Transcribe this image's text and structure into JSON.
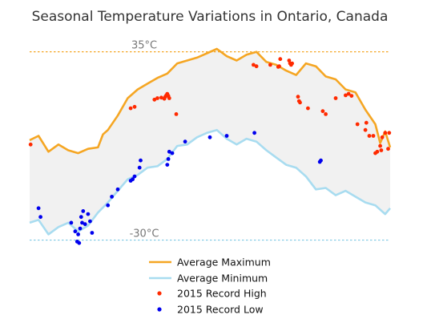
{
  "chart_data": {
    "type": "line",
    "title": "Seasonal Temperature Variations in Ontario, Canada",
    "xlabel": "",
    "ylabel": "",
    "x_unit": "day of year",
    "xlim": [
      1,
      365
    ],
    "ylim": [
      -31.5,
      38.5
    ],
    "grid": false,
    "legend_position": "bottom-center",
    "reference_lines": [
      {
        "value": 35,
        "label": "35°C",
        "color": "#f5a623"
      },
      {
        "value": -30,
        "label": "-30°C",
        "color": "#7ec8e3"
      }
    ],
    "band_color": "#f1f1f1",
    "series": [
      {
        "name": "Average Maximum",
        "kind": "line",
        "color": "#f5a623",
        "x": [
          1,
          10,
          20,
          30,
          40,
          50,
          60,
          70,
          75,
          80,
          90,
          100,
          110,
          120,
          130,
          140,
          150,
          160,
          170,
          180,
          190,
          200,
          210,
          220,
          230,
          240,
          250,
          260,
          270,
          280,
          290,
          300,
          310,
          320,
          330,
          340,
          350,
          355,
          360,
          365
        ],
        "values": [
          4.5,
          6,
          0.5,
          3,
          1,
          0,
          1.5,
          2,
          6.5,
          8,
          13,
          19,
          22,
          24,
          26,
          27.5,
          31,
          32,
          33,
          34.5,
          36,
          33.5,
          32,
          34,
          35,
          31.5,
          30.5,
          28.5,
          27,
          31,
          30,
          26.5,
          25.5,
          22,
          21,
          15,
          10,
          3.5,
          7.5,
          2
        ]
      },
      {
        "name": "Average Minimum",
        "kind": "line",
        "color": "#a8dcf0",
        "x": [
          1,
          10,
          20,
          30,
          40,
          50,
          60,
          70,
          80,
          90,
          100,
          110,
          120,
          130,
          140,
          150,
          160,
          170,
          180,
          190,
          200,
          210,
          220,
          230,
          240,
          250,
          260,
          270,
          280,
          290,
          300,
          310,
          320,
          330,
          340,
          350,
          360,
          365
        ],
        "values": [
          -24,
          -23,
          -28,
          -25.5,
          -24,
          -27,
          -25,
          -20.5,
          -17,
          -13,
          -9,
          -7.5,
          -5,
          -4.5,
          -2,
          2.5,
          3,
          5.5,
          7,
          8,
          5,
          3,
          5,
          4,
          1,
          -1.5,
          -4,
          -5,
          -8,
          -12.5,
          -12,
          -14.5,
          -13,
          -15,
          -17,
          -18,
          -21,
          -19
        ]
      },
      {
        "name": "2015 Record High",
        "kind": "scatter",
        "color": "#ff2a00",
        "x": [
          2,
          103,
          107,
          127,
          130,
          134,
          137,
          138,
          139,
          140,
          141,
          142,
          149,
          227,
          230,
          244,
          252,
          253,
          254,
          263,
          264,
          265,
          266,
          272,
          273,
          274,
          282,
          297,
          300,
          310,
          320,
          323,
          326,
          332,
          340,
          341,
          344,
          348,
          350,
          352,
          355,
          356,
          357,
          360,
          363,
          364
        ],
        "values": [
          3,
          15.5,
          16,
          18.5,
          19,
          19.2,
          18.8,
          19.5,
          20,
          20.5,
          19.8,
          19,
          13.5,
          30.5,
          30,
          30.5,
          29.8,
          30,
          32.5,
          32,
          31,
          30.5,
          31,
          19.5,
          18,
          17.5,
          15.5,
          14.5,
          13.5,
          19,
          20,
          20.5,
          19.8,
          10,
          8,
          10.5,
          6,
          6,
          0,
          0.5,
          2.5,
          1,
          5.5,
          7,
          1.5,
          7
        ]
      },
      {
        "name": "2015 Record Low",
        "kind": "scatter",
        "color": "#0000ee",
        "x": [
          10,
          12,
          43,
          47,
          49,
          50,
          51,
          52,
          53,
          54,
          55,
          57,
          60,
          62,
          64,
          80,
          84,
          90,
          103,
          105,
          107,
          112,
          113,
          140,
          141,
          142,
          145,
          158,
          183,
          200,
          228,
          294,
          295
        ],
        "values": [
          -19,
          -22,
          -24,
          -27,
          -30.5,
          -28,
          -31,
          -26,
          -22,
          -24,
          -20,
          -24.5,
          -21,
          -23.5,
          -27.5,
          -18,
          -15,
          -12.5,
          -9.5,
          -9,
          -8,
          -5,
          -2.5,
          -4,
          -2,
          0.5,
          0,
          4,
          5.5,
          6,
          7,
          -3,
          -2.5
        ]
      }
    ]
  }
}
